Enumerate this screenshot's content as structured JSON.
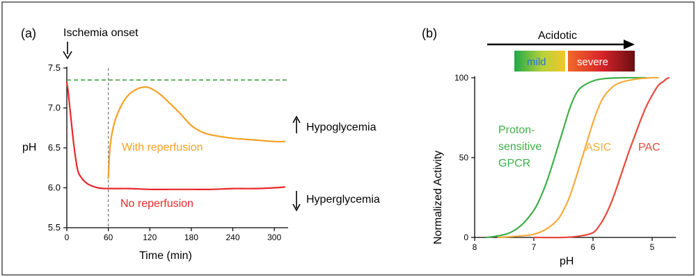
{
  "chart_data": [
    {
      "panel_label": "(a)",
      "type": "line",
      "xlabel": "Time (min)",
      "ylabel": "pH",
      "xlim": [
        0,
        320
      ],
      "ylim": [
        5.5,
        7.5
      ],
      "xticks": [
        "0",
        "60",
        "120",
        "180",
        "240",
        "300"
      ],
      "yticks": [
        "5.5",
        "6.0",
        "6.5",
        "7.0",
        "7.5"
      ],
      "series": [
        {
          "name": "No reperfusion",
          "color": "#e8262b",
          "x": [
            0,
            2,
            5,
            10,
            15,
            20,
            30,
            45,
            60,
            90,
            120,
            150,
            180,
            210,
            240,
            270,
            300,
            315
          ],
          "y": [
            7.32,
            7.2,
            6.95,
            6.55,
            6.25,
            6.14,
            6.05,
            6.0,
            5.99,
            5.99,
            5.98,
            5.98,
            5.98,
            5.98,
            5.99,
            5.99,
            6.0,
            6.01
          ]
        },
        {
          "name": "With reperfusion",
          "color": "#f5a024",
          "x": [
            60,
            63,
            70,
            80,
            90,
            100,
            110,
            120,
            135,
            150,
            165,
            180,
            195,
            210,
            240,
            270,
            300,
            315
          ],
          "y": [
            6.12,
            6.55,
            6.85,
            7.05,
            7.17,
            7.23,
            7.26,
            7.25,
            7.17,
            7.05,
            6.92,
            6.78,
            6.7,
            6.66,
            6.62,
            6.6,
            6.58,
            6.58
          ]
        }
      ],
      "reference_lines": {
        "normal_ph": 7.35,
        "normal_ph_color": "#2ca02c",
        "reperfusion_time": 60
      },
      "annotations": {
        "onset": "Ischemia onset",
        "hypo": "Hypoglycemia",
        "hyper": "Hyperglycemia"
      }
    },
    {
      "panel_label": "(b)",
      "type": "line",
      "xlabel": "pH",
      "ylabel": "Normalized Activity",
      "xlim": [
        8,
        4.6
      ],
      "ylim": [
        0,
        100
      ],
      "xticks": [
        "8",
        "7",
        "6",
        "5"
      ],
      "yticks": [
        "0",
        "50",
        "100"
      ],
      "series": [
        {
          "name": "Proton-sensitive GPCR",
          "label_lines": [
            "Proton-",
            "sensitive",
            "GPCR"
          ],
          "color": "#3fae4a",
          "x": [
            7.8,
            7.6,
            7.4,
            7.2,
            7.0,
            6.9,
            6.8,
            6.7,
            6.6,
            6.5,
            6.4,
            6.3,
            6.2,
            6.0,
            5.8,
            5.5,
            5.1
          ],
          "y": [
            0,
            1,
            3,
            8,
            17,
            24,
            33,
            44,
            56,
            68,
            80,
            89,
            94,
            98,
            99.5,
            100,
            100
          ]
        },
        {
          "name": "ASIC",
          "color": "#f7ab3c",
          "x": [
            7.6,
            7.2,
            7.0,
            6.8,
            6.6,
            6.5,
            6.4,
            6.3,
            6.2,
            6.1,
            6.0,
            5.9,
            5.8,
            5.6,
            5.3,
            5.0,
            4.9
          ],
          "y": [
            0,
            1,
            2,
            5,
            11,
            17,
            25,
            36,
            48,
            60,
            72,
            82,
            89,
            96,
            99,
            100,
            100
          ]
        },
        {
          "name": "PAC",
          "color": "#e8473a",
          "x": [
            7.0,
            6.5,
            6.2,
            6.0,
            5.9,
            5.8,
            5.7,
            5.6,
            5.5,
            5.4,
            5.3,
            5.2,
            5.1,
            5.0,
            4.9,
            4.8,
            4.75,
            4.72
          ],
          "y": [
            0,
            0,
            1,
            3,
            7,
            13,
            21,
            31,
            42,
            53,
            63,
            73,
            82,
            89,
            95,
            98,
            99.5,
            100
          ]
        }
      ],
      "acidotic_scale": {
        "title": "Acidotic",
        "mild": "mild",
        "severe": "severe"
      }
    }
  ]
}
